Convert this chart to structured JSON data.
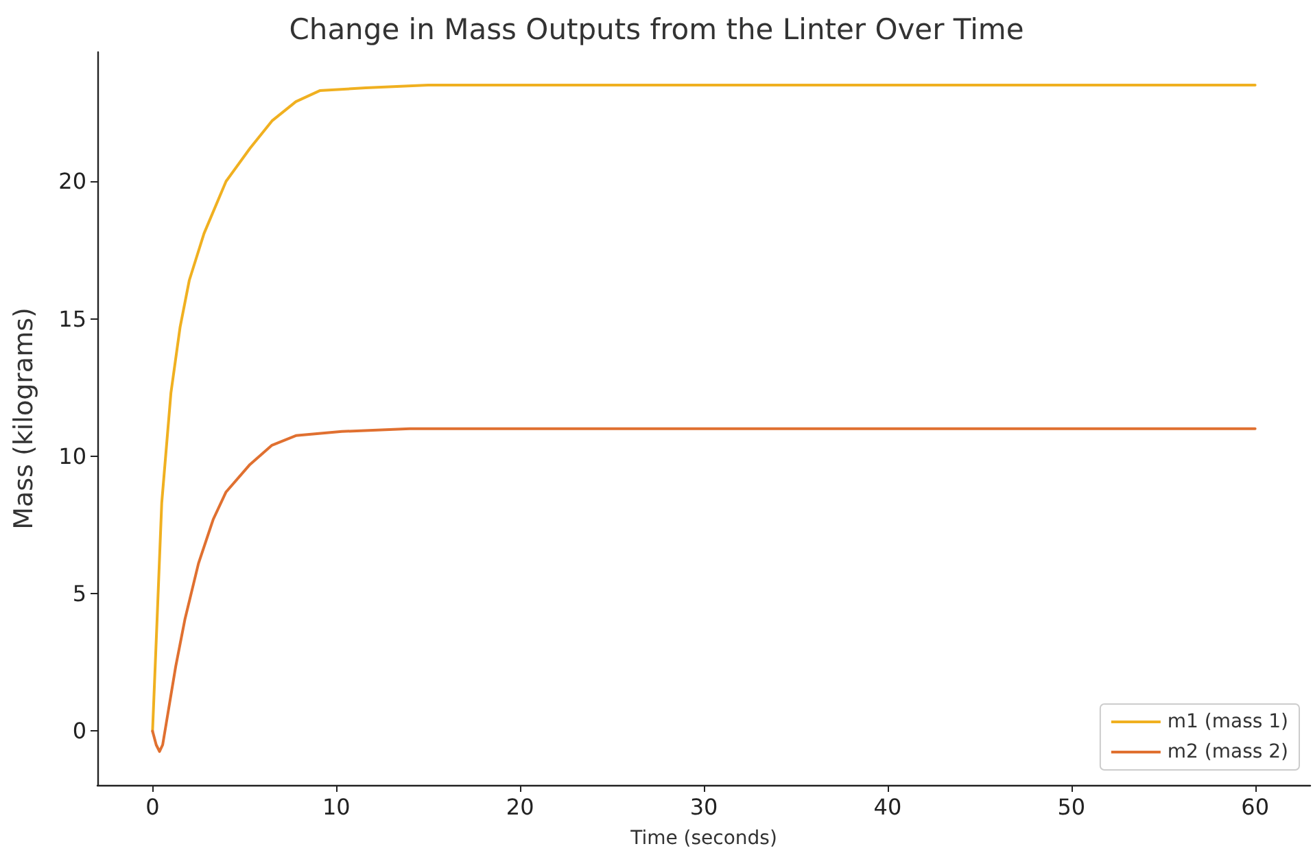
{
  "chart_data": {
    "type": "line",
    "title": "Change in Mass Outputs from the Linter Over Time",
    "xlabel": "Time (seconds)",
    "ylabel": "Mass (kilograms)",
    "xlim": [
      -3,
      63
    ],
    "ylim": [
      -1.96,
      24.7
    ],
    "xticks": [
      0,
      10,
      20,
      30,
      40,
      50,
      60
    ],
    "yticks": [
      0,
      5,
      10,
      15,
      20
    ],
    "grid": false,
    "legend": "bottom right",
    "marker": "none",
    "line_style": "solid",
    "series": [
      {
        "name": "m1 (mass 1)",
        "color": "#f0b020",
        "x": [
          0,
          0.25,
          0.5,
          1,
          1.5,
          2,
          2.8,
          4,
          5.3,
          6.5,
          7.8,
          9.1,
          11.6,
          15,
          20,
          30,
          40,
          50,
          60
        ],
        "values": [
          0,
          4.1,
          8.3,
          12.3,
          14.7,
          16.4,
          18.1,
          20,
          21.2,
          22.2,
          22.9,
          23.3,
          23.4,
          23.5,
          23.5,
          23.5,
          23.5,
          23.5,
          23.5
        ]
      },
      {
        "name": "m2 (mass 2)",
        "color": "#e07030",
        "x": [
          0,
          0.2,
          0.38,
          0.55,
          0.75,
          1.26,
          1.76,
          2.5,
          3.3,
          4,
          5.3,
          6.5,
          7.8,
          10.3,
          14,
          20,
          30,
          40,
          50,
          60
        ],
        "values": [
          0,
          -0.5,
          -0.74,
          -0.5,
          0.3,
          2.35,
          4.06,
          6.1,
          7.7,
          8.7,
          9.7,
          10.4,
          10.75,
          10.9,
          11.0,
          11.0,
          11.0,
          11.0,
          11.0,
          11.0
        ]
      }
    ]
  }
}
